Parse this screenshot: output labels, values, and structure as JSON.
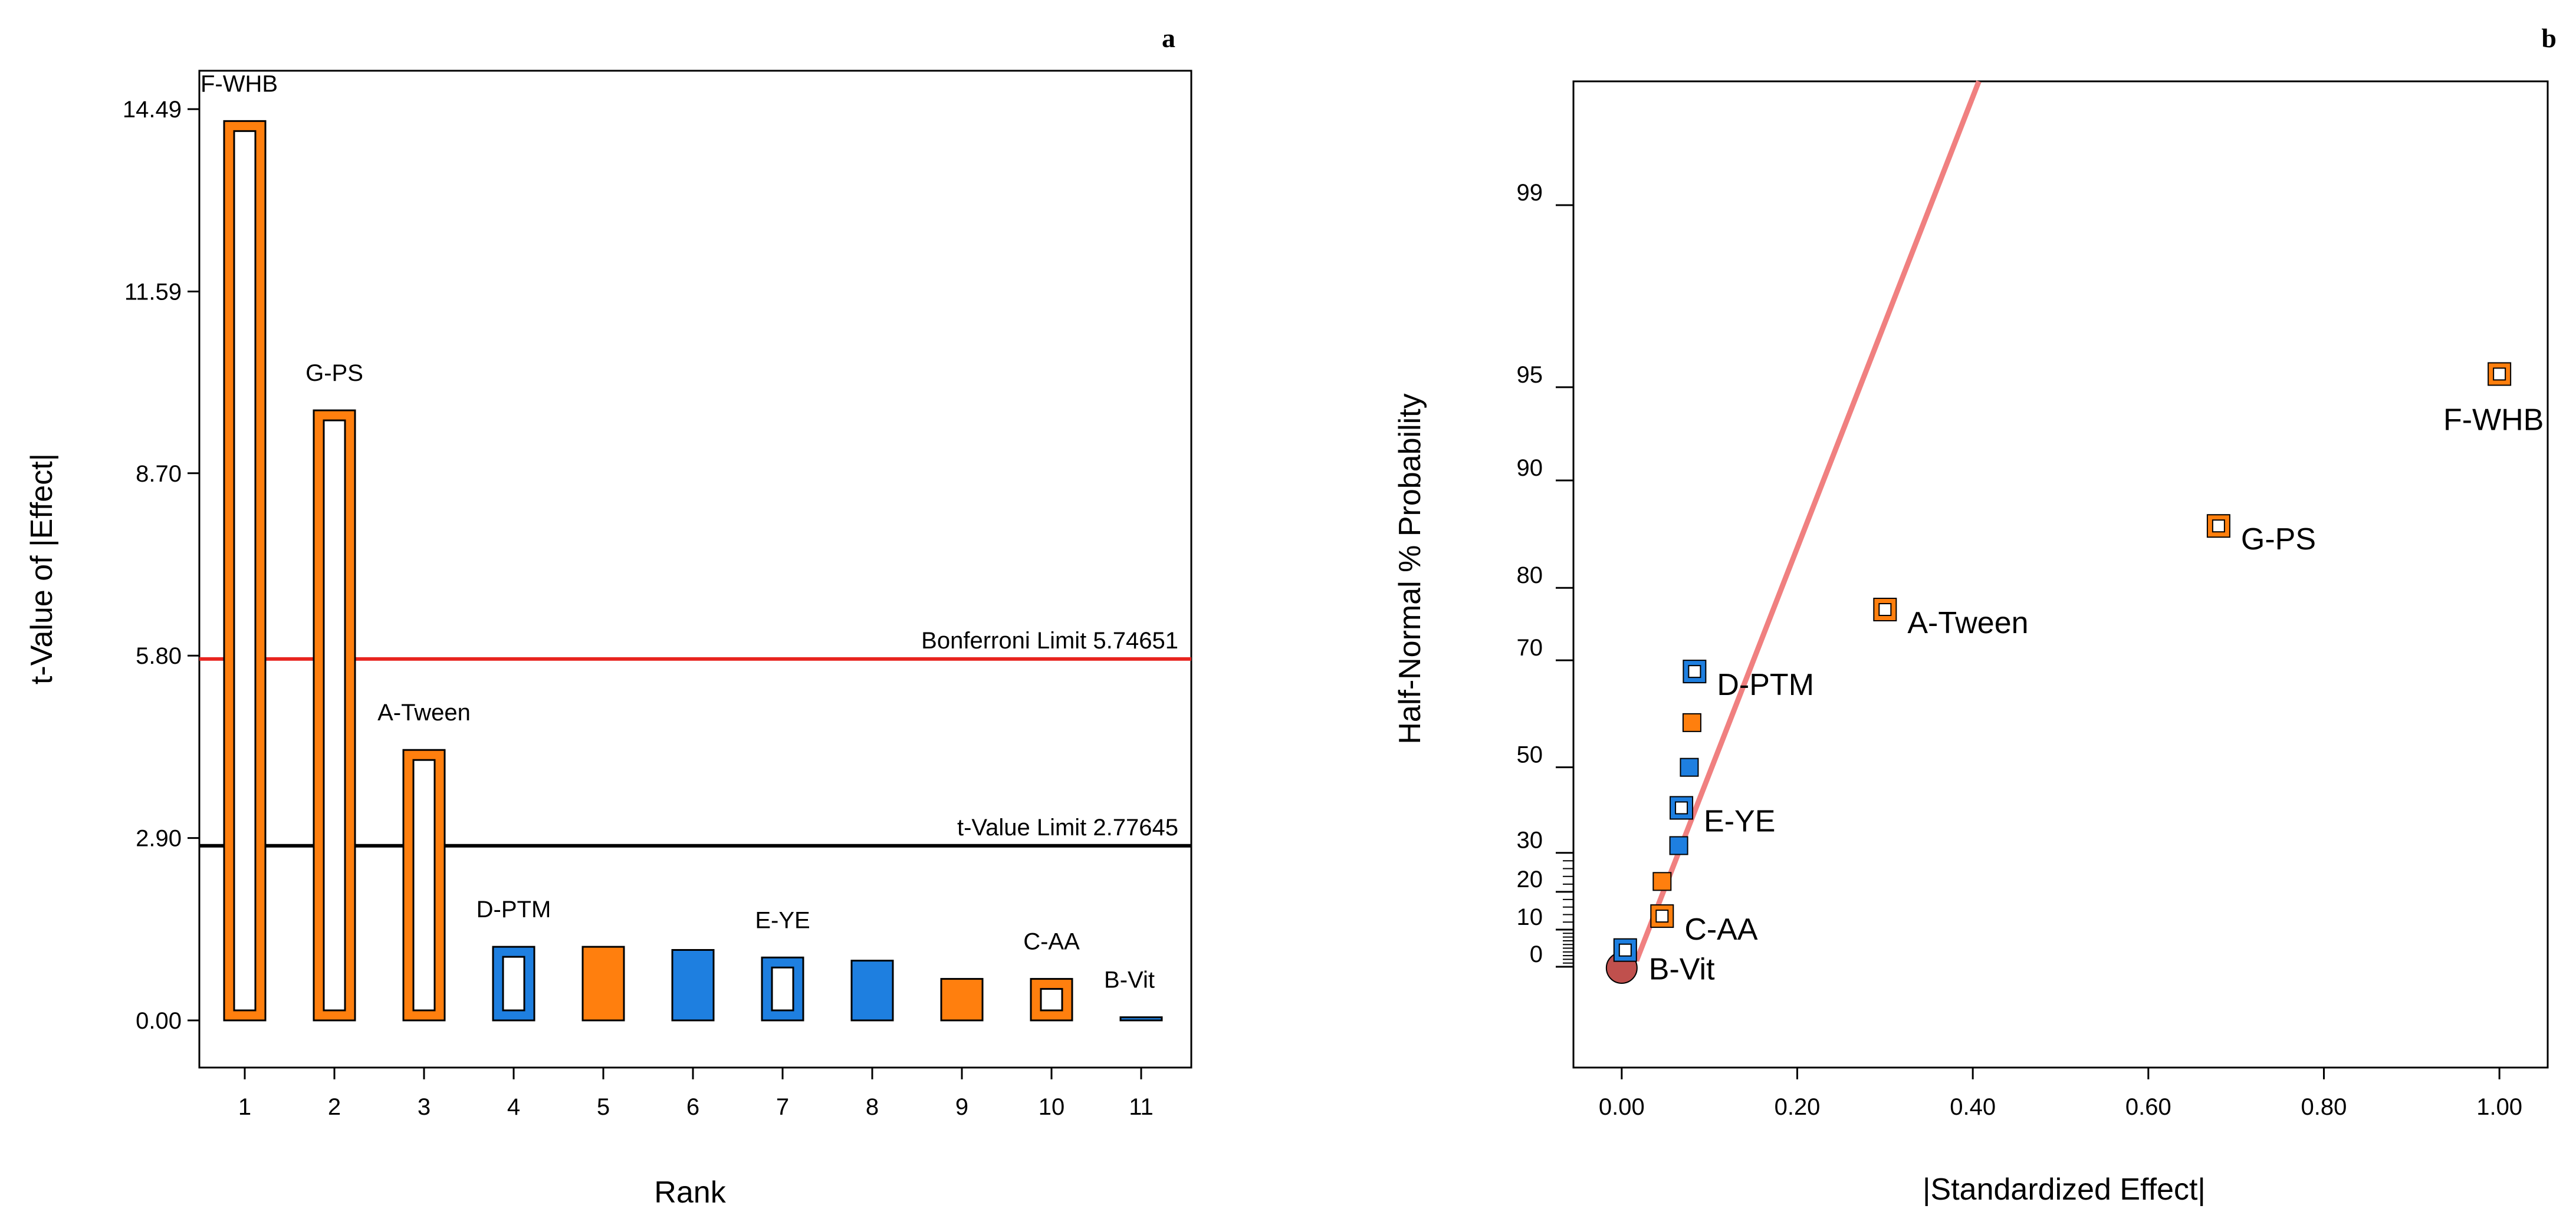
{
  "chart_data": [
    {
      "type": "bar",
      "panel": "a",
      "title": "",
      "xlabel": "Rank",
      "ylabel": "t-Value of |Effect|",
      "categories": [
        "1",
        "2",
        "3",
        "4",
        "5",
        "6",
        "7",
        "8",
        "9",
        "10",
        "11"
      ],
      "values": [
        14.3,
        9.7,
        4.3,
        1.17,
        1.17,
        1.12,
        1.0,
        0.95,
        0.66,
        0.66,
        0.05
      ],
      "bar_labels": [
        "F-WHB",
        "G-PS",
        "A-Tween",
        "D-PTM",
        "",
        "",
        "E-YE",
        "",
        "",
        "C-AA",
        "B-Vit"
      ],
      "bar_colors": [
        "#ff7f0e",
        "#ff7f0e",
        "#ff7f0e",
        "#1e7fe0",
        "#ff7f0e",
        "#1e7fe0",
        "#1e7fe0",
        "#1e7fe0",
        "#ff7f0e",
        "#ff7f0e",
        "#1e7fe0"
      ],
      "bar_hollow": [
        true,
        true,
        true,
        true,
        false,
        false,
        true,
        false,
        false,
        true,
        false
      ],
      "yticks": [
        "0.00",
        "2.90",
        "5.80",
        "8.70",
        "11.59",
        "14.49"
      ],
      "ylim": [
        -0.75,
        15.1
      ],
      "limits": [
        {
          "name": "Bonferroni Limit 5.74651",
          "value": 5.74651,
          "color": "#e8241f"
        },
        {
          "name": "t-Value Limit 2.77645",
          "value": 2.77645,
          "color": "#000000"
        }
      ]
    },
    {
      "type": "scatter",
      "panel": "b",
      "title": "",
      "xlabel": "|Standardized Effect|",
      "ylabel": "Half-Normal % Probability",
      "xticks": [
        "0.00",
        "0.20",
        "0.40",
        "0.60",
        "0.80",
        "1.00"
      ],
      "yticks": [
        "0",
        "10",
        "20",
        "30",
        "50",
        "70",
        "80",
        "90",
        "95",
        "99"
      ],
      "xlim": [
        -0.055,
        1.055
      ],
      "points": [
        {
          "label": "F-WHB",
          "x": 1.0,
          "p": 95.5,
          "color": "#ff7f0e",
          "hollow": true
        },
        {
          "label": "G-PS",
          "x": 0.68,
          "p": 86.4,
          "color": "#ff7f0e",
          "hollow": true
        },
        {
          "label": "A-Tween",
          "x": 0.3,
          "p": 77.3,
          "color": "#ff7f0e",
          "hollow": true
        },
        {
          "label": "D-PTM",
          "x": 0.083,
          "p": 68.2,
          "color": "#1e7fe0",
          "hollow": true
        },
        {
          "label": "",
          "x": 0.08,
          "p": 59.1,
          "color": "#ff7f0e",
          "hollow": false
        },
        {
          "label": "",
          "x": 0.077,
          "p": 50.0,
          "color": "#1e7fe0",
          "hollow": false
        },
        {
          "label": "E-YE",
          "x": 0.068,
          "p": 40.9,
          "color": "#1e7fe0",
          "hollow": true
        },
        {
          "label": "",
          "x": 0.065,
          "p": 31.8,
          "color": "#1e7fe0",
          "hollow": false
        },
        {
          "label": "",
          "x": 0.046,
          "p": 22.7,
          "color": "#ff7f0e",
          "hollow": false
        },
        {
          "label": "C-AA",
          "x": 0.046,
          "p": 13.6,
          "color": "#ff7f0e",
          "hollow": true
        },
        {
          "label": "B-Vit",
          "x": 0.004,
          "p": 4.5,
          "color": "#1e7fe0",
          "hollow": true
        }
      ],
      "origin_marker": {
        "x": 0.0,
        "p": 0.0,
        "color": "#c0504d"
      },
      "reference_line": {
        "color": "#f08080",
        "x_at_p0": 0.0,
        "x_at_p99": 0.35
      }
    }
  ]
}
